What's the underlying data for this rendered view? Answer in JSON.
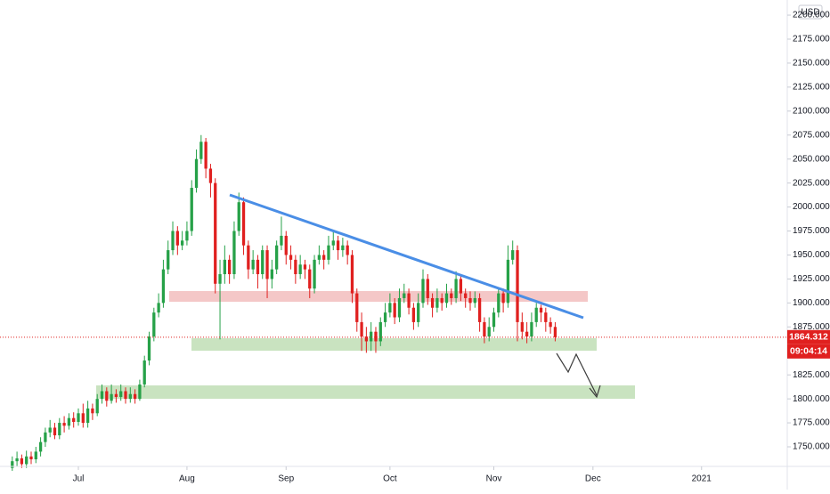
{
  "chart_data": {
    "type": "candlestick",
    "currency": "USD",
    "up_color": "#26a148",
    "down_color": "#e0201f",
    "open": [
      1728,
      1735,
      1738,
      1732,
      1740,
      1737,
      1745,
      1755,
      1765,
      1770,
      1762,
      1775,
      1772,
      1780,
      1776,
      1785,
      1775,
      1790,
      1785,
      1800,
      1808,
      1798,
      1805,
      1802,
      1808,
      1800,
      1805,
      1800,
      1815,
      1840,
      1865,
      1890,
      1900,
      1935,
      1955,
      1975,
      1960,
      1965,
      1975,
      2020,
      2050,
      2068,
      2040,
      2025,
      1920,
      1930,
      1945,
      1930,
      1975,
      2005,
      1960,
      1935,
      1945,
      1930,
      1955,
      1925,
      1935,
      1960,
      1970,
      1950,
      1945,
      1930,
      1940,
      1935,
      1915,
      1945,
      1950,
      1945,
      1960,
      1965,
      1955,
      1960,
      1950,
      1910,
      1880,
      1865,
      1860,
      1870,
      1860,
      1880,
      1890,
      1900,
      1885,
      1905,
      1910,
      1895,
      1880,
      1900,
      1925,
      1905,
      1895,
      1905,
      1900,
      1910,
      1905,
      1925,
      1910,
      1905,
      1900,
      1905,
      1880,
      1865,
      1875,
      1890,
      1910,
      1900,
      1945,
      1955,
      1880,
      1870,
      1865,
      1880,
      1895,
      1890,
      1880,
      1875
    ],
    "high": [
      1740,
      1745,
      1742,
      1746,
      1745,
      1750,
      1760,
      1770,
      1778,
      1775,
      1780,
      1782,
      1785,
      1786,
      1790,
      1795,
      1798,
      1795,
      1805,
      1815,
      1812,
      1815,
      1810,
      1815,
      1812,
      1812,
      1810,
      1820,
      1845,
      1870,
      1895,
      1910,
      1945,
      1965,
      1985,
      1980,
      1975,
      1985,
      2028,
      2060,
      2075,
      2072,
      2045,
      2030,
      1945,
      1960,
      1950,
      1985,
      2015,
      2010,
      1965,
      1955,
      1950,
      1960,
      1960,
      1945,
      1965,
      1990,
      1975,
      1960,
      1950,
      1950,
      1945,
      1940,
      1950,
      1960,
      1955,
      1970,
      1975,
      1970,
      1968,
      1965,
      1955,
      1915,
      1890,
      1875,
      1880,
      1875,
      1885,
      1900,
      1910,
      1905,
      1915,
      1920,
      1915,
      1900,
      1910,
      1935,
      1930,
      1910,
      1915,
      1910,
      1920,
      1915,
      1933,
      1930,
      1915,
      1912,
      1912,
      1910,
      1885,
      1885,
      1895,
      1915,
      1915,
      1960,
      1965,
      1960,
      1890,
      1880,
      1890,
      1900,
      1898,
      1895,
      1885,
      1880
    ],
    "low": [
      1725,
      1730,
      1728,
      1728,
      1732,
      1733,
      1740,
      1750,
      1760,
      1758,
      1758,
      1765,
      1768,
      1770,
      1772,
      1770,
      1770,
      1778,
      1782,
      1795,
      1792,
      1795,
      1796,
      1798,
      1795,
      1796,
      1795,
      1798,
      1812,
      1835,
      1860,
      1885,
      1895,
      1930,
      1950,
      1950,
      1955,
      1960,
      1970,
      2015,
      2045,
      2030,
      2010,
      1910,
      1862,
      1920,
      1920,
      1925,
      1970,
      1950,
      1925,
      1930,
      1915,
      1925,
      1905,
      1915,
      1930,
      1955,
      1940,
      1935,
      1920,
      1925,
      1925,
      1905,
      1910,
      1940,
      1935,
      1940,
      1955,
      1945,
      1948,
      1940,
      1900,
      1870,
      1850,
      1848,
      1850,
      1848,
      1855,
      1875,
      1885,
      1878,
      1880,
      1900,
      1888,
      1872,
      1875,
      1895,
      1898,
      1885,
      1890,
      1892,
      1895,
      1898,
      1900,
      1902,
      1895,
      1892,
      1895,
      1870,
      1858,
      1860,
      1870,
      1885,
      1890,
      1895,
      1940,
      1860,
      1862,
      1858,
      1860,
      1875,
      1880,
      1870,
      1868,
      1860
    ],
    "close": [
      1735,
      1738,
      1732,
      1740,
      1737,
      1745,
      1755,
      1765,
      1770,
      1762,
      1775,
      1772,
      1780,
      1776,
      1785,
      1775,
      1790,
      1785,
      1800,
      1808,
      1798,
      1805,
      1802,
      1808,
      1800,
      1805,
      1800,
      1815,
      1840,
      1865,
      1890,
      1900,
      1935,
      1955,
      1975,
      1960,
      1965,
      1975,
      2020,
      2050,
      2068,
      2040,
      2025,
      1920,
      1930,
      1945,
      1930,
      1975,
      2005,
      1960,
      1935,
      1945,
      1930,
      1955,
      1925,
      1935,
      1960,
      1970,
      1950,
      1945,
      1930,
      1940,
      1935,
      1915,
      1945,
      1950,
      1945,
      1960,
      1965,
      1955,
      1960,
      1950,
      1910,
      1880,
      1865,
      1860,
      1870,
      1860,
      1880,
      1890,
      1900,
      1885,
      1905,
      1910,
      1895,
      1880,
      1900,
      1925,
      1905,
      1895,
      1905,
      1900,
      1910,
      1905,
      1925,
      1910,
      1905,
      1900,
      1905,
      1880,
      1865,
      1875,
      1890,
      1910,
      1900,
      1945,
      1955,
      1880,
      1870,
      1865,
      1880,
      1895,
      1890,
      1880,
      1875,
      1864.312
    ],
    "last_price": 1864.312,
    "countdown": "09:04:14",
    "xlim": [
      -2.6,
      163.4
    ],
    "xticks": [
      {
        "value": 14,
        "label": "Jul"
      },
      {
        "value": 37,
        "label": "Aug"
      },
      {
        "value": 58,
        "label": "Sep"
      },
      {
        "value": 80,
        "label": "Oct"
      },
      {
        "value": 102,
        "label": "Nov"
      },
      {
        "value": 123,
        "label": "Dec"
      },
      {
        "value": 146,
        "label": "2021"
      }
    ],
    "ylim": [
      1729.6,
      2215.8
    ],
    "yticks": [
      {
        "value": 1750,
        "label": "1750.000"
      },
      {
        "value": 1775,
        "label": "1775.000"
      },
      {
        "value": 1800,
        "label": "1800.000"
      },
      {
        "value": 1825,
        "label": "1825.000"
      },
      {
        "value": 1850,
        "label": "1850.000"
      },
      {
        "value": 1875,
        "label": "1875.000"
      },
      {
        "value": 1900,
        "label": "1900.000"
      },
      {
        "value": 1925,
        "label": "1925.000"
      },
      {
        "value": 1950,
        "label": "1950.000"
      },
      {
        "value": 1975,
        "label": "1975.000"
      },
      {
        "value": 2000,
        "label": "2000.000"
      },
      {
        "value": 2025,
        "label": "2025.000"
      },
      {
        "value": 2050,
        "label": "2050.000"
      },
      {
        "value": 2075,
        "label": "2075.000"
      },
      {
        "value": 2100,
        "label": "2100.000"
      },
      {
        "value": 2125,
        "label": "2125.000"
      },
      {
        "value": 2150,
        "label": "2150.000"
      },
      {
        "value": 2175,
        "label": "2175.000"
      },
      {
        "value": 2200,
        "label": "2200.000"
      }
    ]
  }
}
